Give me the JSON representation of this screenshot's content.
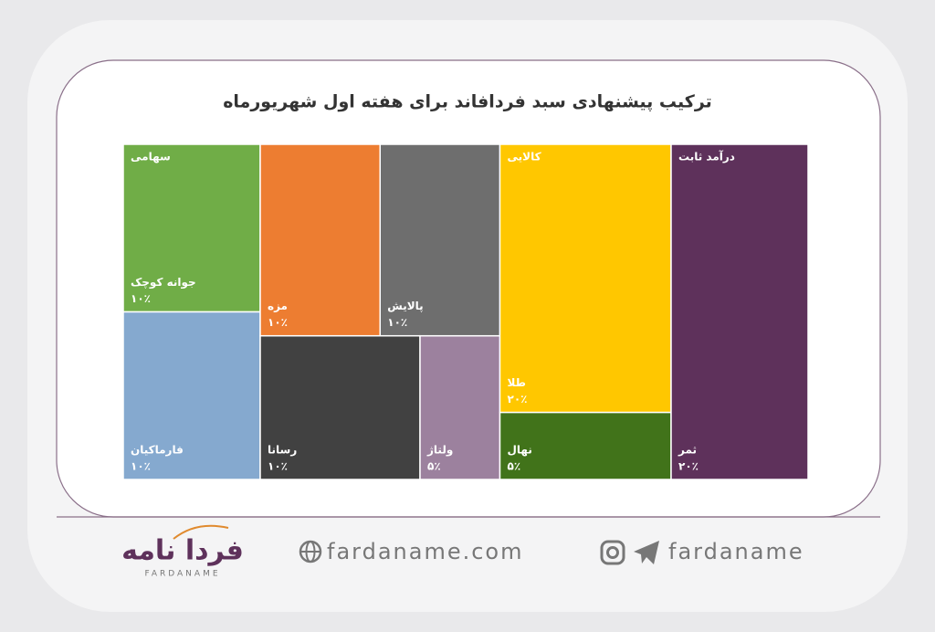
{
  "chart_data": {
    "type": "treemap",
    "title": "ترکیب پیشنهادی سبد فردافاند برای هفته اول شهریورماه",
    "series": [
      {
        "name": "سهامی",
        "categories": [
          "جوانه کوچک",
          "فارماکیان",
          "مزه",
          "پالایش",
          "رسانا",
          "ولتاژ"
        ],
        "values": [
          10,
          10,
          10,
          10,
          10,
          5
        ],
        "value_labels": [
          "۱۰٪",
          "۱۰٪",
          "۱۰٪",
          "۱۰٪",
          "۱۰٪",
          "۵٪"
        ],
        "colors": [
          "#70ad47",
          "#85a9cf",
          "#ed7d31",
          "#6e6e6e",
          "#414141",
          "#9c819e"
        ]
      },
      {
        "name": "کالایی",
        "categories": [
          "طلا",
          "نهال"
        ],
        "values": [
          20,
          5
        ],
        "value_labels": [
          "۲۰٪",
          "۵٪"
        ],
        "colors": [
          "#ffc700",
          "#41731a"
        ]
      },
      {
        "name": "درآمد ثابت",
        "categories": [
          "ثمر"
        ],
        "values": [
          20
        ],
        "value_labels": [
          "۲۰٪"
        ],
        "colors": [
          "#5e315b"
        ]
      }
    ]
  },
  "footer": {
    "logo": "فردا نامه",
    "logo_sub": "FARDANAME",
    "website": "fardaname.com",
    "social": "fardaname"
  }
}
